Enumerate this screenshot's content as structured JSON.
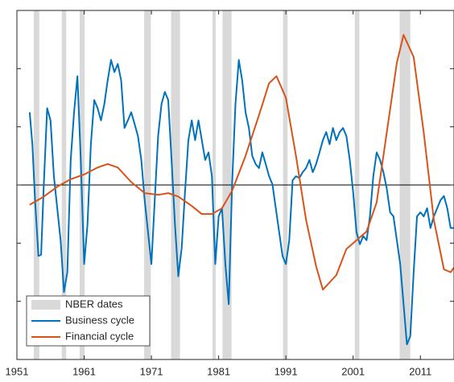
{
  "chart_data": {
    "type": "line",
    "xlim": [
      1951,
      2016
    ],
    "xticks": [
      1951,
      1961,
      1971,
      1981,
      1991,
      2001,
      2011
    ],
    "ylim": [
      -3,
      3
    ],
    "yticks": [
      -3,
      -2,
      -1,
      0,
      1,
      2,
      3
    ],
    "reference_line": 0,
    "shaded": {
      "name": "NBER dates",
      "color": "#d9d9d9",
      "ranges": [
        [
          1953.5,
          1954.33
        ],
        [
          1957.67,
          1958.33
        ],
        [
          1960.33,
          1961.08
        ],
        [
          1969.92,
          1970.92
        ],
        [
          1973.92,
          1975.25
        ],
        [
          1980.08,
          1980.58
        ],
        [
          1981.58,
          1982.92
        ],
        [
          1990.58,
          1991.25
        ],
        [
          2001.25,
          2001.92
        ],
        [
          2007.92,
          2009.5
        ]
      ]
    },
    "legend": "lower left",
    "series": [
      {
        "name": "Business cycle",
        "color": "#0072bd",
        "x": [
          1952.9,
          1953.3,
          1953.7,
          1954.2,
          1954.6,
          1955,
          1955.5,
          1956,
          1956.5,
          1957,
          1957.5,
          1958,
          1958.5,
          1959,
          1959.5,
          1960,
          1960.5,
          1961,
          1961.5,
          1962,
          1962.5,
          1963,
          1963.5,
          1964,
          1964.5,
          1965,
          1965.5,
          1966,
          1966.5,
          1967,
          1967.5,
          1968,
          1968.5,
          1969,
          1969.5,
          1970,
          1970.5,
          1971,
          1971.5,
          1972,
          1972.5,
          1973,
          1973.5,
          1974,
          1974.5,
          1975,
          1975.5,
          1976,
          1976.5,
          1977,
          1977.5,
          1978,
          1978.5,
          1979,
          1979.5,
          1980,
          1980.5,
          1981,
          1981.5,
          1982,
          1982.5,
          1983,
          1983.5,
          1984,
          1984.5,
          1985,
          1985.5,
          1986,
          1986.5,
          1987,
          1987.5,
          1988,
          1988.5,
          1989,
          1989.5,
          1990,
          1990.5,
          1991,
          1991.5,
          1992,
          1992.5,
          1993,
          1993.5,
          1994,
          1994.5,
          1995,
          1995.5,
          1996,
          1996.5,
          1997,
          1997.5,
          1998,
          1998.5,
          1999,
          1999.5,
          2000,
          2000.5,
          2001,
          2001.5,
          2002,
          2002.5,
          2003,
          2003.5,
          2004,
          2004.5,
          2005,
          2005.5,
          2006,
          2006.5,
          2007,
          2007.5,
          2008,
          2008.5,
          2009,
          2009.5,
          2010,
          2010.5,
          2011,
          2011.5,
          2012,
          2012.5,
          2013,
          2013.5,
          2014,
          2014.5,
          2015,
          2015.5,
          2016
        ],
        "values": [
          1.25,
          0.7,
          -0.26,
          -1.22,
          -1.2,
          0.01,
          1.32,
          1.11,
          0.15,
          -0.4,
          -0.95,
          -1.84,
          -1.5,
          0.43,
          1.25,
          1.87,
          0.43,
          -1.36,
          -0.67,
          0.7,
          1.46,
          1.32,
          1.11,
          1.39,
          1.8,
          2.15,
          1.94,
          2.08,
          1.8,
          0.98,
          1.11,
          1.25,
          1.05,
          0.84,
          0.43,
          -0.26,
          -0.81,
          -1.36,
          -0.26,
          0.84,
          1.39,
          1.6,
          1.46,
          0.43,
          -0.67,
          -1.57,
          -1.09,
          -0.12,
          0.77,
          1.11,
          0.77,
          1.11,
          0.77,
          0.43,
          0.56,
          0.15,
          -1.36,
          -0.54,
          -0.4,
          -1.36,
          -2.05,
          0.01,
          1.39,
          2.15,
          1.8,
          1.25,
          0.98,
          0.5,
          0.36,
          0.29,
          0.56,
          0.36,
          0.15,
          0.01,
          -0.4,
          -0.81,
          -1.22,
          -1.36,
          -0.95,
          0.08,
          0.15,
          0.12,
          0.22,
          0.29,
          0.43,
          0.22,
          0.36,
          0.56,
          0.77,
          0.91,
          0.7,
          0.98,
          0.77,
          0.91,
          0.98,
          0.84,
          0.43,
          -0.12,
          -0.81,
          -1.02,
          -0.88,
          -0.95,
          -0.54,
          0.15,
          0.56,
          0.43,
          0.22,
          -0.06,
          -0.47,
          -0.54,
          -0.95,
          -1.36,
          -2.05,
          -2.74,
          -2.6,
          -1.5,
          -0.54,
          -0.47,
          -0.54,
          -0.4,
          -0.74,
          -0.54,
          -0.4,
          -0.26,
          -0.19,
          -0.4,
          -0.74,
          -0.74
        ]
      },
      {
        "name": "Financial cycle",
        "color": "#d95319",
        "x": [
          1952.9,
          1955,
          1957,
          1959,
          1961,
          1963,
          1964.5,
          1966,
          1968,
          1970,
          1972,
          1973.5,
          1975,
          1977,
          1978.5,
          1980,
          1981.5,
          1983,
          1985,
          1987,
          1988.5,
          1989.6,
          1991,
          1992.5,
          1994,
          1995.5,
          1996.5,
          1998.5,
          2000,
          2001.5,
          2003,
          2004.5,
          2006,
          2007.5,
          2008.5,
          2010,
          2011.5,
          2013,
          2014.5,
          2015.5,
          2016
        ],
        "values": [
          -0.34,
          -0.2,
          -0.03,
          0.1,
          0.18,
          0.3,
          0.36,
          0.3,
          0.05,
          -0.14,
          -0.17,
          -0.14,
          -0.2,
          -0.36,
          -0.5,
          -0.5,
          -0.4,
          -0.1,
          0.5,
          1.2,
          1.75,
          1.87,
          1.5,
          0.5,
          -0.6,
          -1.4,
          -1.8,
          -1.55,
          -1.1,
          -0.95,
          -0.8,
          -0.3,
          0.9,
          2.1,
          2.58,
          2.2,
          0.9,
          -0.6,
          -1.45,
          -1.5,
          -1.42
        ]
      }
    ]
  }
}
